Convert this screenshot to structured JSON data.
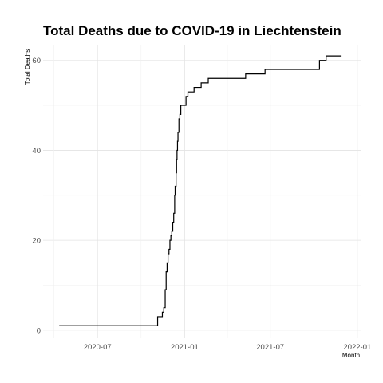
{
  "chart_data": {
    "type": "line",
    "title": "Total Deaths due to COVID-19 in Liechtenstein",
    "xlabel": "Month",
    "ylabel": "Total Deaths",
    "x_ticks": [
      "2020-07",
      "2021-01",
      "2021-07",
      "2022-01"
    ],
    "y_ticks": [
      0,
      20,
      40,
      60
    ],
    "ylim": [
      -1.8,
      63.5
    ],
    "xlim": [
      "2020-03-08",
      "2022-01-08"
    ],
    "grid": true,
    "legend": "none",
    "series": [
      {
        "x": [
          "2020-04-11",
          "2020-11-05",
          "2020-11-08",
          "2020-11-15",
          "2020-11-18",
          "2020-11-21",
          "2020-11-23",
          "2020-11-25",
          "2020-11-27",
          "2020-11-29",
          "2020-12-01",
          "2020-12-03",
          "2020-12-05",
          "2020-12-07",
          "2020-12-09",
          "2020-12-11",
          "2020-12-12",
          "2020-12-14",
          "2020-12-15",
          "2020-12-16",
          "2020-12-17",
          "2020-12-18",
          "2020-12-19",
          "2020-12-20",
          "2020-12-22",
          "2020-12-24",
          "2020-12-27",
          "2020-12-30",
          "2021-01-04",
          "2021-01-08",
          "2021-01-14",
          "2021-01-21",
          "2021-02-05",
          "2021-02-20",
          "2021-03-10",
          "2021-05-10",
          "2021-06-20",
          "2021-10-13",
          "2021-10-27",
          "2021-11-27"
        ],
        "y": [
          1,
          3,
          3,
          4,
          5,
          9,
          13,
          15,
          17,
          18,
          20,
          21,
          22,
          24,
          26,
          30,
          32,
          35,
          38,
          40,
          42,
          44,
          44,
          47,
          48,
          50,
          50,
          50,
          52,
          53,
          53,
          54,
          55,
          56,
          56,
          57,
          58,
          60,
          61,
          61
        ]
      }
    ]
  }
}
